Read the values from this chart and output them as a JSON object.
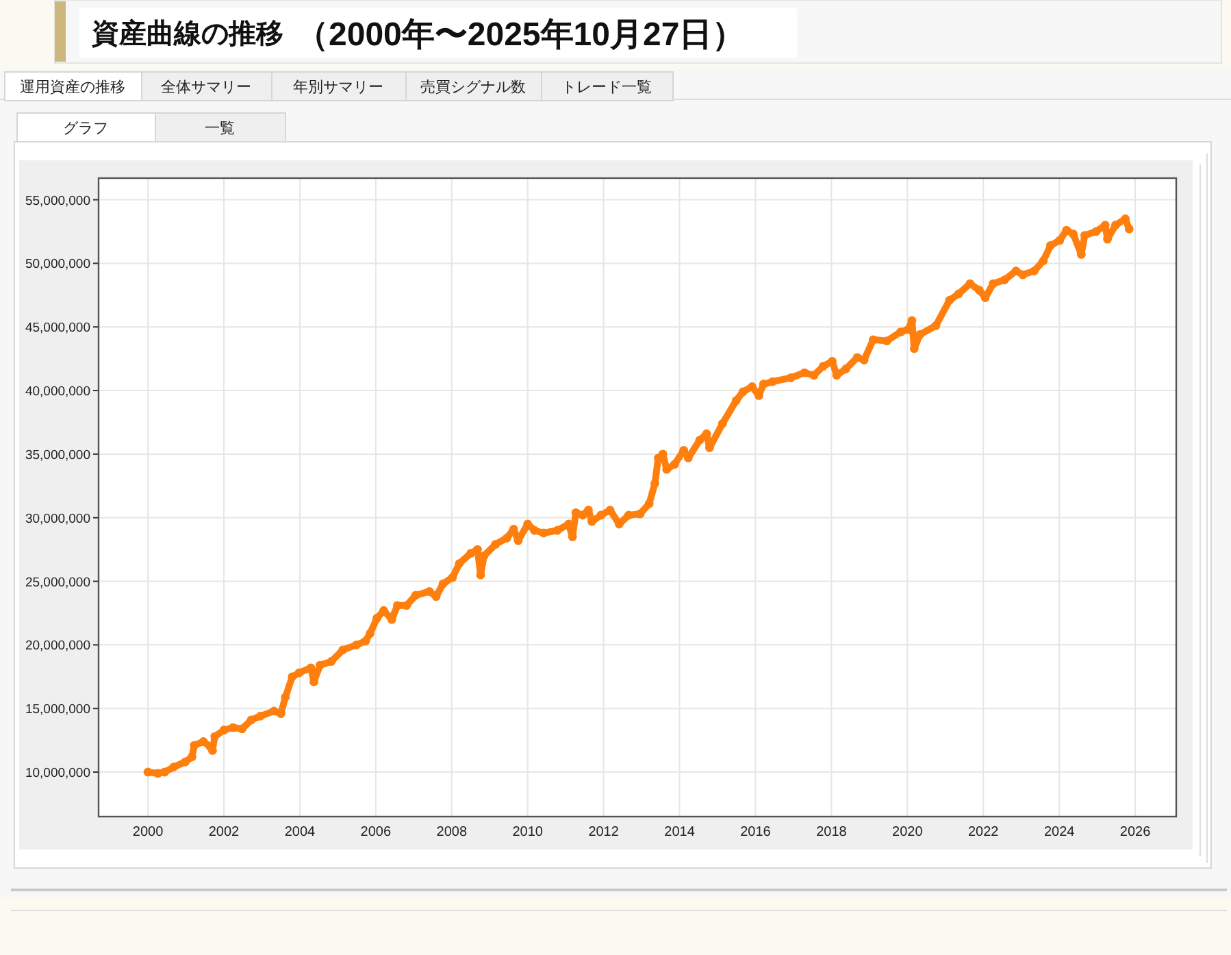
{
  "chart_data": {
    "type": "line",
    "title": "資産曲線の推移",
    "subtitle": "（2000年〜2025年10月27日）",
    "annotations": [
      "運用資産の推移",
      "全体サマリー",
      "年別サマリー",
      "売買シグナル数",
      "トレード一覧",
      "グラフ",
      "一覧"
    ],
    "xlim": [
      1998.7,
      2027.08
    ],
    "xticks": [
      2000,
      2002,
      2004,
      2006,
      2008,
      2010,
      2012,
      2014,
      2016,
      2018,
      2020,
      2022,
      2024,
      2026
    ],
    "ylim": [
      6500000,
      56700000
    ],
    "yticks": [
      {
        "value": 10000000,
        "label": "10,000,000"
      },
      {
        "value": 15000000,
        "label": "15,000,000"
      },
      {
        "value": 20000000,
        "label": "20,000,000"
      },
      {
        "value": 25000000,
        "label": "25,000,000"
      },
      {
        "value": 30000000,
        "label": "30,000,000"
      },
      {
        "value": 35000000,
        "label": "35,000,000"
      },
      {
        "value": 40000000,
        "label": "40,000,000"
      },
      {
        "value": 45000000,
        "label": "45,000,000"
      },
      {
        "value": 50000000,
        "label": "50,000,000"
      },
      {
        "value": 55000000,
        "label": "55,000,000"
      }
    ],
    "grid": true,
    "marker": "circle",
    "color": "#ff7f0e",
    "x": [
      2000.0,
      2000.26,
      2000.44,
      2000.68,
      2000.98,
      2001.16,
      2001.22,
      2001.46,
      2001.64,
      2001.7,
      2001.76,
      2002.0,
      2002.24,
      2002.48,
      2002.72,
      2002.96,
      2003.32,
      2003.5,
      2003.62,
      2003.8,
      2003.98,
      2004.29,
      2004.37,
      2004.53,
      2004.83,
      2005.13,
      2005.49,
      2005.73,
      2005.85,
      2006.03,
      2006.21,
      2006.42,
      2006.57,
      2006.81,
      2007.05,
      2007.41,
      2007.59,
      2007.77,
      2008.02,
      2008.2,
      2008.5,
      2008.68,
      2008.76,
      2008.85,
      2009.15,
      2009.45,
      2009.63,
      2009.75,
      2010.0,
      2010.18,
      2010.42,
      2010.78,
      2011.08,
      2011.18,
      2011.27,
      2011.45,
      2011.6,
      2011.69,
      2011.93,
      2012.17,
      2012.41,
      2012.66,
      2012.96,
      2013.2,
      2013.35,
      2013.44,
      2013.56,
      2013.66,
      2013.87,
      2014.11,
      2014.23,
      2014.53,
      2014.71,
      2014.79,
      2015.13,
      2015.49,
      2015.67,
      2015.91,
      2016.09,
      2016.21,
      2016.45,
      2016.93,
      2017.29,
      2017.54,
      2017.78,
      2018.02,
      2018.14,
      2018.38,
      2018.68,
      2018.86,
      2019.1,
      2019.46,
      2019.82,
      2020.02,
      2020.12,
      2020.18,
      2020.33,
      2020.75,
      2021.11,
      2021.35,
      2021.65,
      2021.89,
      2022.05,
      2022.26,
      2022.56,
      2022.86,
      2023.04,
      2023.34,
      2023.58,
      2023.77,
      2024.01,
      2024.19,
      2024.37,
      2024.58,
      2024.67,
      2024.97,
      2025.21,
      2025.27,
      2025.48,
      2025.74,
      2025.84
    ],
    "values": [
      10000000,
      9900000,
      10000000,
      10400000,
      10800000,
      11200000,
      12100000,
      12400000,
      12000000,
      11700000,
      12800000,
      13300000,
      13500000,
      13400000,
      14100000,
      14400000,
      14800000,
      14600000,
      15900000,
      17500000,
      17800000,
      18200000,
      17100000,
      18400000,
      18700000,
      19600000,
      20000000,
      20300000,
      20900000,
      22100000,
      22700000,
      22000000,
      23100000,
      23100000,
      23900000,
      24200000,
      23800000,
      24800000,
      25300000,
      26400000,
      27200000,
      27500000,
      25500000,
      27000000,
      27900000,
      28400000,
      29100000,
      28200000,
      29500000,
      29000000,
      28800000,
      29000000,
      29500000,
      28500000,
      30400000,
      30200000,
      30600000,
      29700000,
      30200000,
      30600000,
      29500000,
      30200000,
      30300000,
      31100000,
      32700000,
      34700000,
      35000000,
      33800000,
      34200000,
      35300000,
      34700000,
      36100000,
      36600000,
      35500000,
      37400000,
      39200000,
      39900000,
      40300000,
      39600000,
      40500000,
      40700000,
      41000000,
      41400000,
      41200000,
      41900000,
      42300000,
      41200000,
      41700000,
      42600000,
      42400000,
      44000000,
      43900000,
      44600000,
      44800000,
      45500000,
      43300000,
      44400000,
      45100000,
      47100000,
      47600000,
      48400000,
      47900000,
      47300000,
      48400000,
      48700000,
      49400000,
      49100000,
      49400000,
      50200000,
      51400000,
      51800000,
      52600000,
      52300000,
      50700000,
      52200000,
      52500000,
      53000000,
      51900000,
      53000000,
      53500000,
      52700000
    ]
  }
}
